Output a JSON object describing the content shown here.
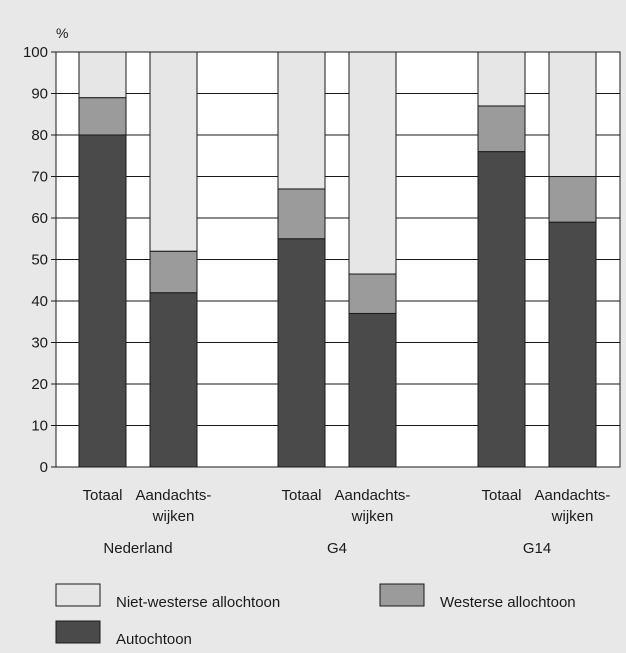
{
  "chart_data": {
    "type": "bar",
    "stacked": true,
    "ylabel": "%",
    "ylim": [
      0,
      100
    ],
    "yticks": [
      0,
      10,
      20,
      30,
      40,
      50,
      60,
      70,
      80,
      90,
      100
    ],
    "grid": true,
    "categories": [
      {
        "label": "Totaal",
        "group": "Nederland"
      },
      {
        "label": "Aandachts-wijken",
        "group": "Nederland"
      },
      {
        "label": "Totaal",
        "group": "G4"
      },
      {
        "label": "Aandachts-wijken",
        "group": "G4"
      },
      {
        "label": "Totaal",
        "group": "G14"
      },
      {
        "label": "Aandachts-wijken",
        "group": "G14"
      }
    ],
    "groups": [
      "Nederland",
      "G4",
      "G14"
    ],
    "series": [
      {
        "name": "Autochtoon",
        "color": "#4a4a4a",
        "values": [
          80,
          42,
          55,
          37,
          76,
          59
        ]
      },
      {
        "name": "Westerse allochtoon",
        "color": "#9b9b9b",
        "values": [
          9,
          10,
          12,
          9.5,
          11,
          11
        ]
      },
      {
        "name": "Niet-westerse allochtoon",
        "color": "#e6e6e6",
        "values": [
          11,
          48,
          33,
          53.5,
          13,
          30
        ]
      }
    ],
    "legend": "bottom"
  }
}
